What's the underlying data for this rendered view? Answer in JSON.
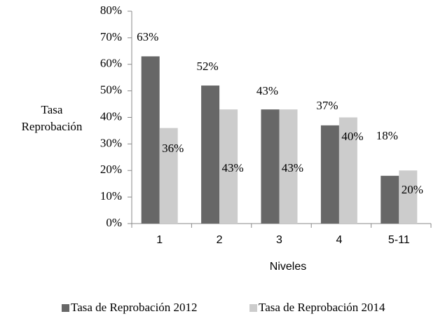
{
  "chart_data": {
    "type": "bar",
    "y_label": [
      "Tasa",
      "Reprobación"
    ],
    "x_label": "Niveles",
    "categories": [
      "1",
      "2",
      "3",
      "4",
      "5-11"
    ],
    "series": [
      {
        "name": "Tasa de Reprobación 2012",
        "color": "#676767",
        "values": [
          63,
          52,
          43,
          37,
          18
        ],
        "value_labels": [
          "63%",
          "52%",
          "43%",
          "37%",
          "18%"
        ]
      },
      {
        "name": "Tasa de Reprobación 2014",
        "color": "#cccccc",
        "values": [
          36,
          43,
          43,
          40,
          20
        ],
        "value_labels": [
          "36%",
          "43%",
          "43%",
          "40%",
          "20%"
        ]
      }
    ],
    "ylim": [
      0,
      80
    ],
    "yticks": [
      {
        "value": 0,
        "label": "0%"
      },
      {
        "value": 10,
        "label": "10%"
      },
      {
        "value": 20,
        "label": "20%"
      },
      {
        "value": 30,
        "label": "30%"
      },
      {
        "value": 40,
        "label": "40%"
      },
      {
        "value": 50,
        "label": "50%"
      },
      {
        "value": 60,
        "label": "60%"
      },
      {
        "value": 70,
        "label": "70%"
      },
      {
        "value": 80,
        "label": "80%"
      }
    ],
    "legend": "bottom"
  }
}
